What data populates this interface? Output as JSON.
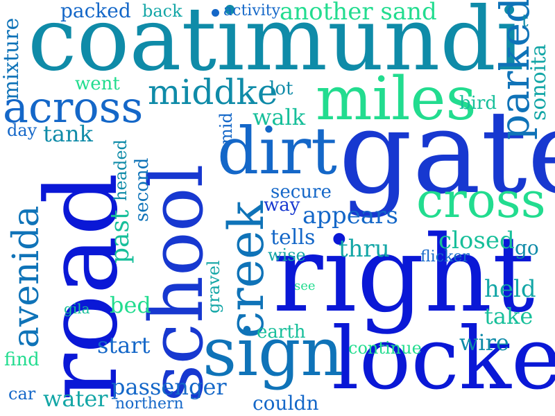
{
  "colors": {
    "background": "#ffffff",
    "blue": "#0a18d6",
    "royal": "#1738d0",
    "azure": "#1467c8",
    "steel": "#0f73b8",
    "teal": "#0f8ba8",
    "cyan": "#13a6a6",
    "sea": "#17bf9a",
    "mint": "#22dc8f"
  },
  "words": [
    {
      "text": "coatimundi",
      "color": "teal"
    },
    {
      "text": "gate",
      "color": "royal"
    },
    {
      "text": "road",
      "color": "blue"
    },
    {
      "text": "school",
      "color": "royal"
    },
    {
      "text": "right",
      "color": "blue"
    },
    {
      "text": "locked",
      "color": "blue"
    },
    {
      "text": "sign",
      "color": "steel"
    },
    {
      "text": "dirt",
      "color": "azure"
    },
    {
      "text": "creek",
      "color": "steel"
    },
    {
      "text": "miles",
      "color": "mint"
    },
    {
      "text": "cross",
      "color": "mint"
    },
    {
      "text": "across",
      "color": "azure"
    },
    {
      "text": "middke",
      "color": "teal"
    },
    {
      "text": "avenida",
      "color": "steel"
    },
    {
      "text": "parked",
      "color": "steel"
    },
    {
      "text": "packed",
      "color": "azure"
    },
    {
      "text": "back",
      "color": "cyan"
    },
    {
      "text": "activity",
      "color": "azure"
    },
    {
      "text": "another sand",
      "color": "mint"
    },
    {
      "text": "t",
      "color": "teal"
    },
    {
      "text": "mixture",
      "color": "steel"
    },
    {
      "text": "went",
      "color": "mint"
    },
    {
      "text": "lot",
      "color": "teal"
    },
    {
      "text": "bird",
      "color": "sea"
    },
    {
      "text": "sonoita",
      "color": "cyan"
    },
    {
      "text": "walk",
      "color": "sea"
    },
    {
      "text": "day",
      "color": "azure"
    },
    {
      "text": "tank",
      "color": "teal"
    },
    {
      "text": "mid",
      "color": "azure"
    },
    {
      "text": "headed",
      "color": "teal"
    },
    {
      "text": "second",
      "color": "steel"
    },
    {
      "text": "secure",
      "color": "azure"
    },
    {
      "text": "way",
      "color": "royal"
    },
    {
      "text": "appears",
      "color": "azure"
    },
    {
      "text": "past",
      "color": "sea"
    },
    {
      "text": "tells",
      "color": "azure"
    },
    {
      "text": "thru",
      "color": "cyan"
    },
    {
      "text": "closed",
      "color": "sea"
    },
    {
      "text": "go",
      "color": "teal"
    },
    {
      "text": "wise",
      "color": "cyan"
    },
    {
      "text": "flicker",
      "color": "azure"
    },
    {
      "text": "gravel",
      "color": "cyan"
    },
    {
      "text": "see",
      "color": "mint"
    },
    {
      "text": "held",
      "color": "cyan"
    },
    {
      "text": "gila",
      "color": "sea"
    },
    {
      "text": "bed",
      "color": "mint"
    },
    {
      "text": "take",
      "color": "sea"
    },
    {
      "text": "earth",
      "color": "sea"
    },
    {
      "text": "start",
      "color": "azure"
    },
    {
      "text": "wire",
      "color": "teal"
    },
    {
      "text": "continue",
      "color": "mint"
    },
    {
      "text": "find",
      "color": "mint"
    },
    {
      "text": "passenger",
      "color": "azure"
    },
    {
      "text": "car",
      "color": "azure"
    },
    {
      "text": "water",
      "color": "cyan"
    },
    {
      "text": "northern",
      "color": "azure"
    },
    {
      "text": "couldn",
      "color": "azure"
    }
  ]
}
